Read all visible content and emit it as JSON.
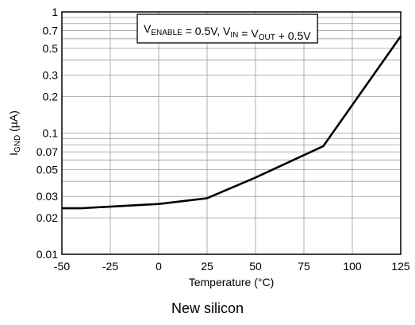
{
  "chart_data": {
    "type": "line",
    "xlabel": "Temperature (°C)",
    "ylabel": {
      "main": "I",
      "sub": "GND",
      "rest": " (µA)"
    },
    "legend": [
      {
        "text": "V",
        "sub": "ENABLE"
      },
      {
        "text": " = 0.5V, V",
        "sub": "IN"
      },
      {
        "text": " = V",
        "sub": "OUT"
      },
      {
        "text": " + 0.5V",
        "sub": ""
      }
    ],
    "legend_position": "top-right",
    "caption": "New silicon",
    "x_scale": "linear",
    "y_scale": "log",
    "xlim": [
      -50,
      125
    ],
    "ylim": [
      0.01,
      1
    ],
    "xticks": [
      -50,
      -25,
      0,
      25,
      50,
      75,
      100,
      125
    ],
    "yticks": [
      1,
      0.7,
      0.5,
      0.3,
      0.2,
      0.1,
      0.07,
      0.05,
      0.03,
      0.02,
      0.01
    ],
    "ytick_labels": [
      "1",
      "0.7",
      "0.5",
      "0.3",
      "0.2",
      "0.1",
      "0.07",
      "0.05",
      "0.03",
      "0.02",
      "0.01"
    ],
    "y_gridlines": [
      0.01,
      0.02,
      0.03,
      0.04,
      0.05,
      0.06,
      0.07,
      0.08,
      0.09,
      0.1,
      0.2,
      0.3,
      0.4,
      0.5,
      0.6,
      0.7,
      0.8,
      0.9,
      1
    ],
    "grid": true,
    "series": [
      {
        "x": [
          -50,
          -40,
          0,
          25,
          50,
          85,
          125
        ],
        "y": [
          0.024,
          0.024,
          0.026,
          0.029,
          0.043,
          0.078,
          0.63
        ]
      }
    ]
  }
}
